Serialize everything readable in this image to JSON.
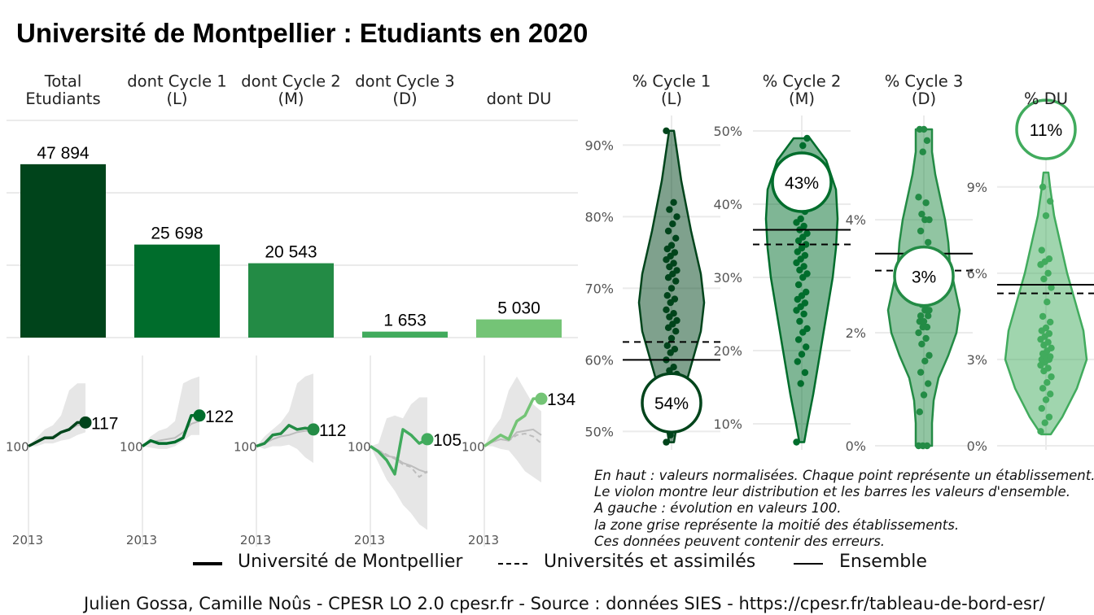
{
  "title": "Université de Montpellier  :  Etudiants en 2020",
  "colors": {
    "total": "#00441b",
    "cycle1": "#006d2c",
    "cycle2": "#238b45",
    "cycle3": "#41ab5d",
    "du": "#74c476",
    "grid": "#ebebeb",
    "ribbon": "#e6e6e6",
    "reference": "#bdbdbd"
  },
  "notes": [
    "En haut : valeurs normalisées. Chaque point représente un établissement.",
    "Le violon montre leur distribution et les barres les valeurs d'ensemble.",
    "A gauche : évolution en valeurs 100.",
    "la zone grise représente la moitié des établissements.",
    "Ces données peuvent contenir des erreurs."
  ],
  "legend": [
    {
      "label": "Université de Montpellier",
      "style": "solid-thick"
    },
    {
      "label": "Universités et assimilés",
      "style": "dashed"
    },
    {
      "label": "Ensemble",
      "style": "solid-thin"
    }
  ],
  "source": "Julien Gossa, Camille Noûs - CPESR LO 2.0 cpesr.fr - Source : données SIES - https://cpesr.fr/tableau-de-bord-esr/",
  "chart_data": [
    {
      "type": "bar",
      "categories": [
        "Total\nEtudiants",
        "dont Cycle 1\n(L)",
        "dont Cycle 2\n(M)",
        "dont Cycle 3\n(D)",
        "dont DU"
      ],
      "values": [
        47894,
        25698,
        20543,
        1653,
        5030
      ],
      "value_labels": [
        "47 894",
        "25 698",
        "20 543",
        "1 653",
        "5 030"
      ],
      "ylim": [
        0,
        60000
      ],
      "grid": true
    },
    {
      "type": "line",
      "panels": [
        "Total Etudiants",
        "dont Cycle 1 (L)",
        "dont Cycle 2 (M)",
        "dont Cycle 3 (D)",
        "dont DU"
      ],
      "x_tick_label": "2013",
      "y_tick_label": "100",
      "ylim": [
        35,
        165
      ],
      "series": [
        {
          "values": [
            100,
            103,
            106,
            106,
            110,
            112,
            117,
            117
          ],
          "end_label": "117"
        },
        {
          "values": [
            100,
            104,
            102,
            102,
            103,
            106,
            122,
            122
          ],
          "end_label": "122"
        },
        {
          "values": [
            100,
            102,
            108,
            109,
            115,
            112,
            113,
            112
          ],
          "end_label": "112"
        },
        {
          "values": [
            100,
            96,
            90,
            80,
            112,
            108,
            102,
            105
          ],
          "end_label": "105"
        },
        {
          "values": [
            100,
            104,
            108,
            105,
            118,
            122,
            134,
            134
          ],
          "end_label": "134"
        }
      ],
      "reference": [
        [
          100,
          103,
          106,
          107,
          110,
          112,
          115,
          116
        ],
        [
          100,
          103,
          104,
          105,
          106,
          110,
          116,
          118
        ],
        [
          100,
          102,
          105,
          107,
          108,
          110,
          111,
          111
        ],
        [
          100,
          97,
          93,
          92,
          88,
          86,
          83,
          81
        ],
        [
          100,
          103,
          105,
          104,
          110,
          111,
          112,
          108
        ]
      ],
      "reference2": [
        null,
        null,
        null,
        [
          100,
          97,
          94,
          91,
          87,
          85,
          78,
          82
        ],
        [
          100,
          103,
          105,
          104,
          108,
          109,
          107,
          102
        ]
      ]
    },
    {
      "type": "violin",
      "panels": [
        {
          "label": "% Cycle 1\n(L)",
          "ylim": [
            48,
            93
          ],
          "ticks": [
            50,
            60,
            70,
            80,
            90
          ],
          "tick_labels": [
            "50%",
            "60%",
            "70%",
            "80%",
            "90%"
          ],
          "value": 54,
          "value_label": "54%",
          "ensemble": 60.0,
          "universites": 62.5,
          "points": [
            48.5,
            49.5,
            51,
            52,
            53,
            55,
            56,
            57,
            58,
            58.5,
            59,
            60,
            61,
            61.5,
            62,
            63,
            64,
            64.5,
            65,
            65.5,
            66,
            66.5,
            67,
            68,
            68.5,
            69,
            70,
            71,
            71.5,
            72,
            72.5,
            73,
            73.5,
            74,
            74.5,
            75,
            75.5,
            76,
            77,
            78,
            79,
            80,
            81,
            82,
            92
          ]
        },
        {
          "label": "% Cycle 2\n(M)",
          "ylim": [
            7,
            51
          ],
          "ticks": [
            10,
            20,
            30,
            40,
            50
          ],
          "tick_labels": [
            "10%",
            "20%",
            "30%",
            "40%",
            "50%"
          ],
          "value": 43,
          "value_label": "43%",
          "ensemble": 36.5,
          "universites": 34.5,
          "points": [
            7.5,
            15.5,
            17,
            18.5,
            19.5,
            20.5,
            21.5,
            22.5,
            23,
            24,
            25,
            25.5,
            26,
            26.5,
            27,
            27.5,
            28,
            29,
            30,
            30.5,
            31,
            31.5,
            32,
            32.5,
            33,
            33.5,
            34,
            34.5,
            35,
            35.5,
            36,
            36.5,
            37,
            37.5,
            38,
            39,
            40,
            41,
            42,
            43,
            48,
            49
          ]
        },
        {
          "label": "% Cycle 3\n(D)",
          "ylim": [
            0,
            5.7
          ],
          "ticks": [
            0,
            2,
            4
          ],
          "tick_labels": [
            "0%",
            "2%",
            "4%"
          ],
          "value": 3,
          "value_label": "3%",
          "ensemble": 3.4,
          "universites": 3.1,
          "points": [
            0,
            0,
            0,
            0.6,
            0.9,
            1.1,
            1.3,
            1.5,
            1.6,
            1.8,
            1.9,
            2.0,
            2.1,
            2.1,
            2.2,
            2.2,
            2.3,
            2.3,
            2.4,
            2.4,
            2.5,
            2.5,
            2.6,
            2.7,
            2.9,
            3.1,
            3.4,
            3.6,
            3.8,
            4.0,
            4.0,
            4.1,
            4.3,
            4.4,
            5.2,
            5.4,
            5.6,
            5.6
          ]
        },
        {
          "label": "% DU",
          "ylim": [
            0,
            11.2
          ],
          "ticks": [
            0,
            3,
            6,
            9
          ],
          "tick_labels": [
            "0%",
            "3%",
            "6%",
            "9%"
          ],
          "value": 11,
          "value_label": "11%",
          "ensemble": 5.6,
          "universites": 5.3,
          "points": [
            0.5,
            0.8,
            1.0,
            1.3,
            1.6,
            1.8,
            2.0,
            2.2,
            2.4,
            2.6,
            2.7,
            2.8,
            2.9,
            3.0,
            3.0,
            3.1,
            3.1,
            3.2,
            3.3,
            3.4,
            3.5,
            3.6,
            3.7,
            3.8,
            3.9,
            4.0,
            4.1,
            4.3,
            4.5,
            5.0,
            5.5,
            5.8,
            6.0,
            6.3,
            6.4,
            6.5,
            6.8,
            8.0,
            8.5,
            9.0
          ]
        }
      ]
    }
  ]
}
